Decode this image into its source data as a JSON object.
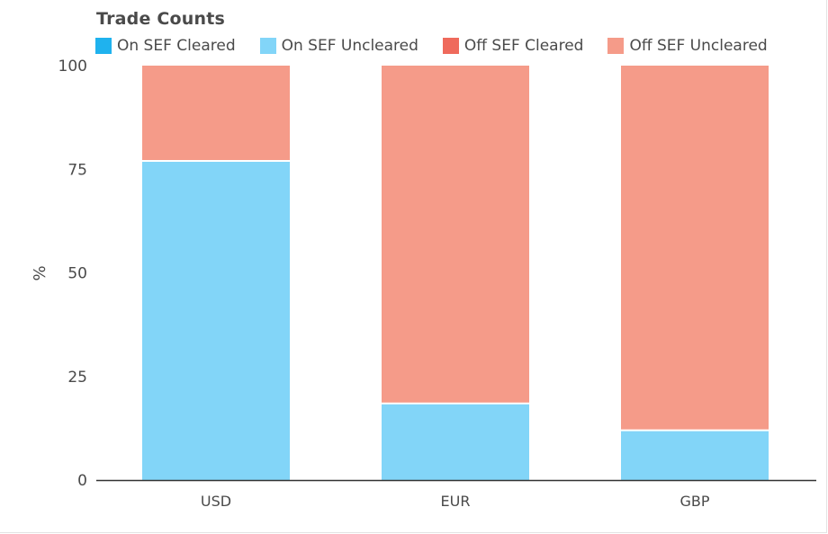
{
  "colors": {
    "on_sef_cleared": "#1fb2ee",
    "on_sef_uncleared": "#82d5f8",
    "off_sef_cleared": "#ef6a5c",
    "off_sef_uncleared": "#f59b89",
    "axis": "#333333",
    "text": "#4a4a4a"
  },
  "chart_data": {
    "type": "bar",
    "stacked": true,
    "title": "Trade Counts",
    "ylabel": "%",
    "xlabel": "",
    "ylim": [
      0,
      100
    ],
    "yticks": [
      0,
      25,
      50,
      75,
      100
    ],
    "categories": [
      "USD",
      "EUR",
      "GBP"
    ],
    "legend_position": "top",
    "grid": false,
    "series": [
      {
        "name": "On SEF Cleared",
        "color_key": "on_sef_cleared",
        "values": [
          0,
          0,
          0
        ]
      },
      {
        "name": "On SEF Uncleared",
        "color_key": "on_sef_uncleared",
        "values": [
          77,
          18.5,
          12
        ]
      },
      {
        "name": "Off SEF Cleared",
        "color_key": "off_sef_cleared",
        "values": [
          0,
          0,
          0
        ]
      },
      {
        "name": "Off SEF Uncleared",
        "color_key": "off_sef_uncleared",
        "values": [
          23,
          81.5,
          88
        ]
      }
    ]
  }
}
